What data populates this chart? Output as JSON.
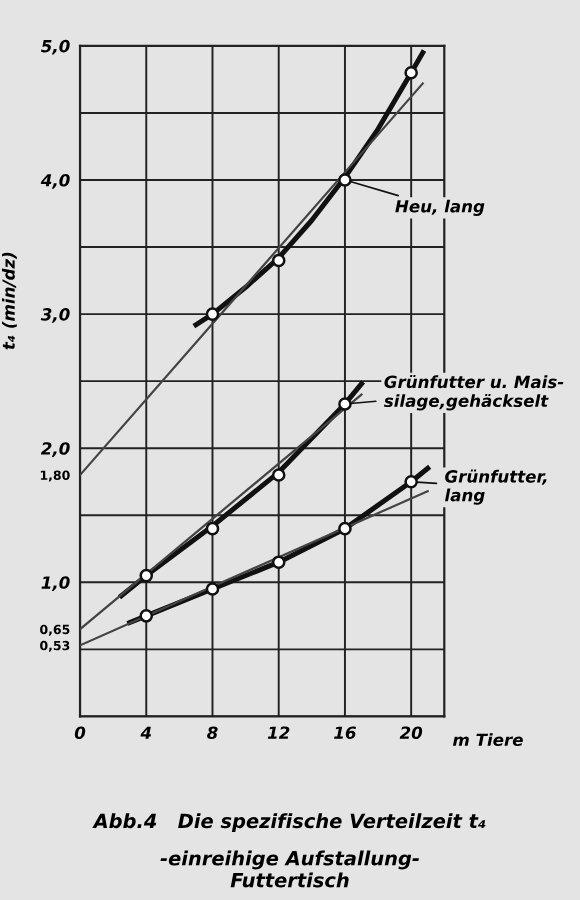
{
  "chart_data": {
    "type": "line",
    "title": "Abb.4   Die spezifische Verteilzeit t₄",
    "subtitle": "-einreihige Aufstallung-\nFuttertisch",
    "xlabel": "m Tiere",
    "ylabel": "t₄ (min/dz)",
    "xlim": [
      0,
      22
    ],
    "xticks": [
      0,
      4,
      8,
      12,
      16,
      20
    ],
    "ylim": [
      0,
      5
    ],
    "yticks": [
      {
        "value": 0,
        "label": null
      },
      {
        "value": 0.5,
        "label": null
      },
      {
        "value": 0.53,
        "label": "0,53"
      },
      {
        "value": 0.65,
        "label": "0,65"
      },
      {
        "value": 1,
        "label": "1,0"
      },
      {
        "value": 1.8,
        "label": "1,80"
      },
      {
        "value": 1.5,
        "label": null
      },
      {
        "value": 2,
        "label": "2,0"
      },
      {
        "value": 2.5,
        "label": null
      },
      {
        "value": 3,
        "label": "3,0"
      },
      {
        "value": 3.5,
        "label": null
      },
      {
        "value": 4,
        "label": "4,0"
      },
      {
        "value": 4.5,
        "label": null
      },
      {
        "value": 5,
        "label": "5,0"
      }
    ],
    "grid": true,
    "line_style": "solid",
    "legend": "right",
    "series": [
      {
        "type": "scatter",
        "marker": "circle",
        "name": "Heu, lang",
        "color": "#111111",
        "x": [
          8,
          12,
          16,
          20
        ],
        "values": [
          3.0,
          3.4,
          4.0,
          4.8
        ]
      },
      {
        "type": "scatter",
        "marker": "circle",
        "name": "Grünfutter u. Mais-\nsilage,gehäckselt",
        "color": "#111111",
        "x": [
          4,
          8,
          12,
          16
        ],
        "values": [
          1.05,
          1.4,
          1.8,
          2.33
        ]
      },
      {
        "type": "scatter",
        "marker": "circle",
        "name": "Grünfutter,\nlang",
        "color": "#111111",
        "x": [
          4,
          8,
          12,
          16,
          20
        ],
        "values": [
          0.75,
          0.95,
          1.15,
          1.4,
          1.75
        ]
      },
      {
        "color": "#111111",
        "x": [
          7,
          8,
          10,
          12,
          14,
          16,
          18,
          20,
          20.7
        ],
        "values": [
          2.92,
          3.0,
          3.2,
          3.42,
          3.7,
          4.02,
          4.38,
          4.8,
          4.95
        ]
      },
      {
        "color": "#111111",
        "x": [
          2.5,
          4,
          8,
          12,
          16,
          17
        ],
        "values": [
          0.9,
          1.05,
          1.42,
          1.82,
          2.33,
          2.48
        ]
      },
      {
        "color": "#111111",
        "x": [
          3,
          4,
          8,
          12,
          16,
          20,
          21
        ],
        "values": [
          0.7,
          0.75,
          0.95,
          1.15,
          1.4,
          1.75,
          1.85
        ]
      },
      {
        "color": "#444444",
        "x": [
          0,
          20.7
        ],
        "values": [
          1.8,
          4.72
        ]
      },
      {
        "color": "#444444",
        "x": [
          0,
          17
        ],
        "values": [
          0.65,
          2.4
        ]
      },
      {
        "color": "#444444",
        "x": [
          0,
          21
        ],
        "values": [
          0.53,
          1.68
        ]
      }
    ]
  }
}
